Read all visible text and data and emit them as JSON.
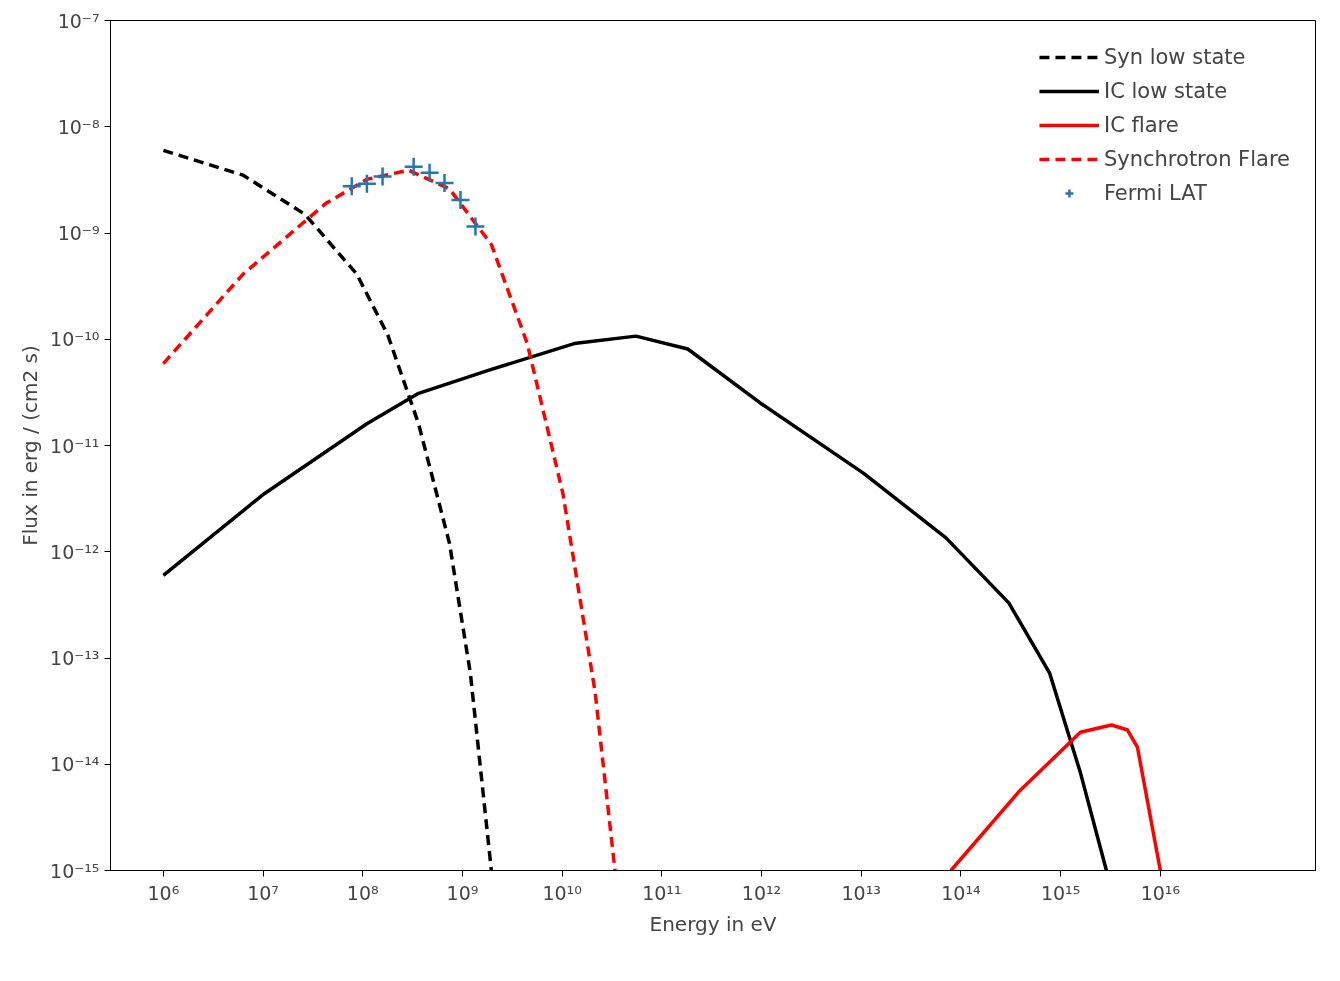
{
  "chart_data": {
    "type": "line",
    "xlabel": "Energy in eV",
    "ylabel": "Flux in erg / (cm2 s)",
    "log": "xy",
    "grid": false,
    "legend": "top right",
    "xlim": [
      295000.0,
      3.6e+17
    ],
    "ylim": [
      1e-15,
      1e-07
    ],
    "xticks": [
      {
        "value": 1000000.0,
        "label": "10⁶"
      },
      {
        "value": 10000000.0,
        "label": "10⁷"
      },
      {
        "value": 100000000.0,
        "label": "10⁸"
      },
      {
        "value": 1000000000.0,
        "label": "10⁹"
      },
      {
        "value": 10000000000.0,
        "label": "10¹⁰"
      },
      {
        "value": 100000000000.0,
        "label": "10¹¹"
      },
      {
        "value": 1000000000000.0,
        "label": "10¹²"
      },
      {
        "value": 10000000000000.0,
        "label": "10¹³"
      },
      {
        "value": 100000000000000.0,
        "label": "10¹⁴"
      },
      {
        "value": 1000000000000000.0,
        "label": "10¹⁵"
      },
      {
        "value": 1e+16,
        "label": "10¹⁶"
      }
    ],
    "yticks": [
      {
        "value": 1e-15,
        "label": "10⁻¹⁵"
      },
      {
        "value": 1e-14,
        "label": "10⁻¹⁴"
      },
      {
        "value": 1e-13,
        "label": "10⁻¹³"
      },
      {
        "value": 1e-12,
        "label": "10⁻¹²"
      },
      {
        "value": 1e-11,
        "label": "10⁻¹¹"
      },
      {
        "value": 1e-10,
        "label": "10⁻¹⁰"
      },
      {
        "value": 1e-09,
        "label": "10⁻⁹"
      },
      {
        "value": 1e-08,
        "label": "10⁻⁸"
      },
      {
        "value": 1e-07,
        "label": "10⁻⁷"
      }
    ],
    "series": [
      {
        "name": "Syn low state",
        "line_style": "dashed",
        "color": "#000000",
        "x": [
          1000000.0,
          6310000.0,
          26300000.0,
          87100000.0,
          178000000.0,
          363000000.0,
          741000000.0,
          1200000000.0,
          1950000000.0
        ],
        "values": [
          6e-09,
          3.5e-09,
          1.5e-09,
          4.1e-10,
          1.1e-10,
          1.6e-11,
          1.2e-12,
          7.2e-14,
          1e-15
        ]
      },
      {
        "name": "IC low state",
        "line_style": "solid",
        "color": "#000000",
        "x": [
          1000000.0,
          10200000.0,
          110000000.0,
          363000000.0,
          1950000000.0,
          13200000000.0,
          55000000000.0,
          182000000000.0,
          977000000000.0,
          10500000000000.0,
          70800000000000.0,
          302000000000000.0,
          776000000000000.0,
          1580000000000000.0,
          2880000000000000.0
        ],
        "values": [
          6e-13,
          3.5e-12,
          1.6e-11,
          3.1e-11,
          5.2e-11,
          9.1e-11,
          1.07e-10,
          8.1e-11,
          2.5e-11,
          5.5e-12,
          1.35e-12,
          3.3e-13,
          7.2e-14,
          8.3e-15,
          1e-15
        ]
      },
      {
        "name": "IC flare",
        "line_style": "solid",
        "color": "#ff0000",
        "x": [
          79400000000000.0,
          380000000000000.0,
          1580000000000000.0,
          3240000000000000.0,
          4680000000000000.0,
          5890000000000000.0,
          1e+16
        ],
        "values": [
          1e-15,
          5.5e-15,
          2e-14,
          2.34e-14,
          2.1e-14,
          1.45e-14,
          1e-15
        ]
      },
      {
        "name": "Synchrotron Flare",
        "line_style": "dashed",
        "color": "#ff0000",
        "x": [
          1000000.0,
          6310000.0,
          42700000.0,
          110000000.0,
          288000000.0,
          741000000.0,
          1950000000.0,
          4470000000.0,
          10200000000.0,
          21400000000.0,
          33900000000.0
        ],
        "values": [
          5.9e-11,
          4.1e-10,
          1.9e-09,
          3.2e-09,
          3.9e-09,
          2.6e-09,
          7.8e-10,
          9.1e-11,
          3.5e-12,
          4.8e-14,
          1e-15
        ]
      },
      {
        "name": "Fermi LAT",
        "type": "scatter",
        "marker": "cross",
        "color": "#1f77b4",
        "x": [
          77600000.0,
          110000000.0,
          158000000.0,
          324000000.0,
          468000000.0,
          661000000.0,
          955000000.0,
          1350000000.0
        ],
        "values": [
          2.75e-09,
          2.9e-09,
          3.4e-09,
          4.2e-09,
          3.7e-09,
          2.95e-09,
          2.05e-09,
          1.15e-09
        ]
      }
    ]
  }
}
